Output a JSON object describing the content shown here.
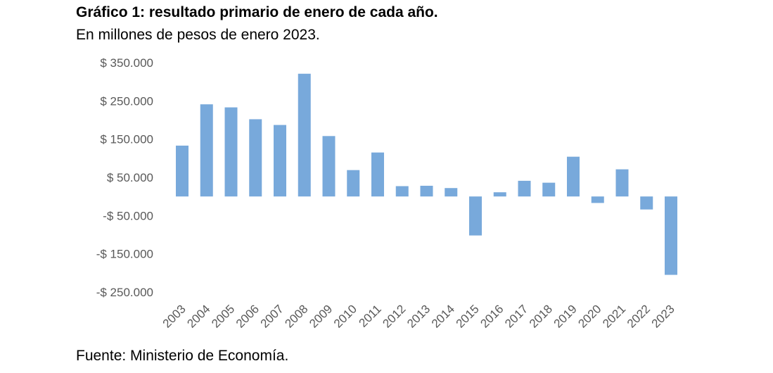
{
  "title": "Gráfico 1: resultado primario de enero de cada año.",
  "subtitle": "En millones de pesos de enero 2023.",
  "source": "Fuente: Ministerio de Economía.",
  "chart_data": {
    "type": "bar",
    "categories": [
      "2003",
      "2004",
      "2005",
      "2006",
      "2007",
      "2008",
      "2009",
      "2010",
      "2011",
      "2012",
      "2013",
      "2014",
      "2015",
      "2016",
      "2017",
      "2018",
      "2019",
      "2020",
      "2021",
      "2022",
      "2023"
    ],
    "values": [
      133000,
      241000,
      233000,
      202000,
      187000,
      321000,
      158000,
      69000,
      115000,
      27000,
      28000,
      22000,
      -102000,
      11000,
      41000,
      36000,
      104000,
      -17000,
      71000,
      -34000,
      -205000
    ],
    "yticks": [
      350000,
      250000,
      150000,
      50000,
      -50000,
      -150000,
      -250000
    ],
    "ytick_labels": [
      "$ 350.000",
      "$ 250.000",
      "$ 150.000",
      "$ 50.000",
      "-$ 50.000",
      "-$ 150.000",
      "-$ 250.000"
    ],
    "ylim": [
      -250000,
      350000
    ],
    "bar_color": "#78A9DB",
    "grid": false,
    "legend": "none"
  }
}
